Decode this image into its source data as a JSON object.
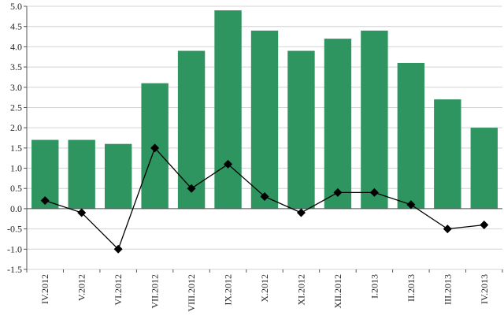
{
  "chart_data": {
    "type": "bar",
    "categories": [
      "IV.2012",
      "V.2012",
      "VI.2012",
      "VII.2012",
      "VIII.2012",
      "IX.2012",
      "X.2012",
      "XI.2012",
      "XII.2012",
      "I.2013",
      "II.2013",
      "III.2013",
      "IV.2013"
    ],
    "series": [
      {
        "type": "bar",
        "color": "#2e9460",
        "values": [
          1.7,
          1.7,
          1.6,
          3.1,
          3.9,
          4.9,
          4.4,
          3.9,
          4.2,
          4.4,
          3.6,
          2.7,
          2.0
        ]
      },
      {
        "type": "line",
        "marker": "diamond",
        "color": "#000000",
        "values": [
          0.2,
          -0.1,
          -1.0,
          1.5,
          0.5,
          1.1,
          0.3,
          -0.1,
          0.4,
          0.4,
          0.1,
          -0.5,
          -0.4
        ]
      }
    ],
    "ylim": [
      -1.5,
      5.0
    ],
    "yticks": [
      "5.0",
      "4.5",
      "4.0",
      "3.5",
      "3.0",
      "2.5",
      "2.0",
      "1.5",
      "1.0",
      "0.5",
      "0.0",
      "-0.5",
      "-1.0",
      "-1.5"
    ],
    "grid": true,
    "title": "",
    "xlabel": "",
    "ylabel": ""
  }
}
